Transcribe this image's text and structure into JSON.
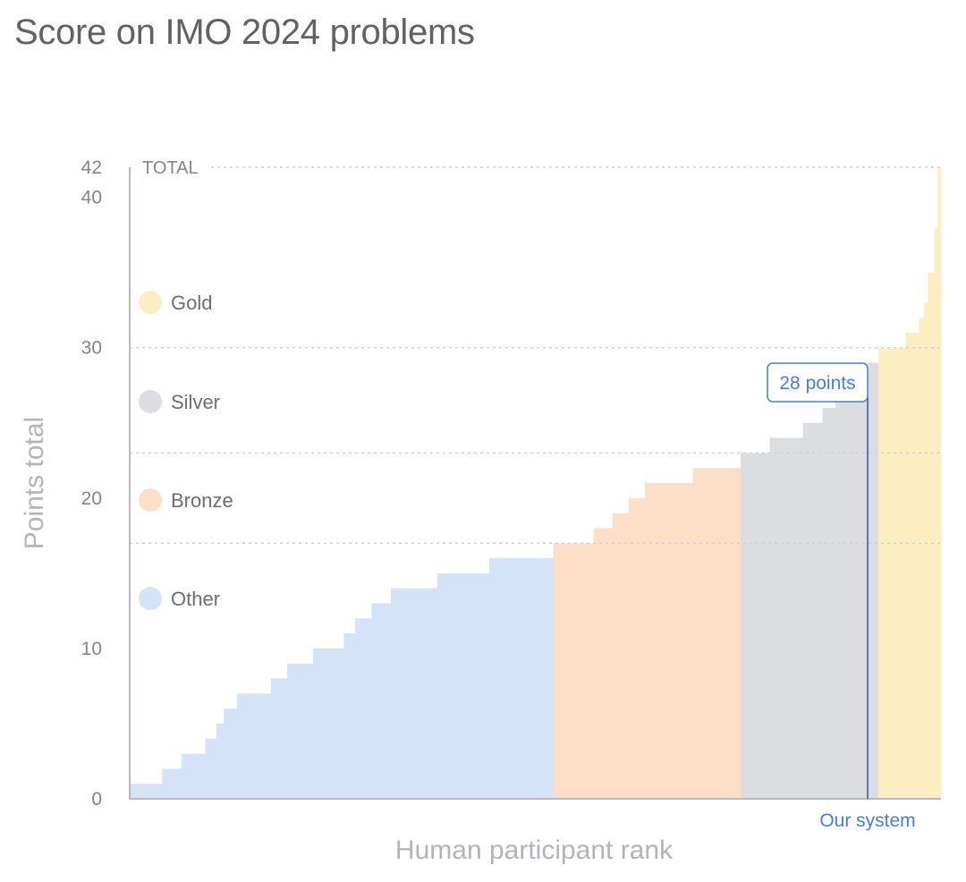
{
  "title": "Score on IMO 2024 problems",
  "chart_data": {
    "type": "area",
    "title": "Score on IMO 2024 problems",
    "xlabel": "Human participant rank",
    "ylabel": "Points total",
    "ylim": [
      0,
      42
    ],
    "yticks": [
      0,
      10,
      20,
      30,
      40,
      42
    ],
    "total_label": "TOTAL",
    "total_value": 42,
    "medal_thresholds": {
      "bronze": 17,
      "silver": 23,
      "gold": 30
    },
    "legend": [
      {
        "label": "Gold",
        "color": "#fdeec2"
      },
      {
        "label": "Silver",
        "color": "#dcdde0"
      },
      {
        "label": "Bronze",
        "color": "#fcdfc6"
      },
      {
        "label": "Other",
        "color": "#d5e3f9"
      }
    ],
    "series": [
      {
        "category": "Other",
        "color": "#d5e3f9",
        "steps": [
          {
            "x0": 0,
            "x1": 4.0,
            "y": 1
          },
          {
            "x0": 4.0,
            "x1": 6.4,
            "y": 2
          },
          {
            "x0": 6.4,
            "x1": 9.3,
            "y": 3
          },
          {
            "x0": 9.3,
            "x1": 10.7,
            "y": 4
          },
          {
            "x0": 10.7,
            "x1": 11.6,
            "y": 5
          },
          {
            "x0": 11.6,
            "x1": 13.2,
            "y": 6
          },
          {
            "x0": 13.2,
            "x1": 17.4,
            "y": 7
          },
          {
            "x0": 17.4,
            "x1": 19.4,
            "y": 8
          },
          {
            "x0": 19.4,
            "x1": 22.6,
            "y": 9
          },
          {
            "x0": 22.6,
            "x1": 26.4,
            "y": 10
          },
          {
            "x0": 26.4,
            "x1": 27.8,
            "y": 11
          },
          {
            "x0": 27.8,
            "x1": 29.8,
            "y": 12
          },
          {
            "x0": 29.8,
            "x1": 32.2,
            "y": 13
          },
          {
            "x0": 32.2,
            "x1": 37.9,
            "y": 14
          },
          {
            "x0": 37.9,
            "x1": 44.3,
            "y": 15
          },
          {
            "x0": 44.3,
            "x1": 52.2,
            "y": 16
          }
        ]
      },
      {
        "category": "Bronze",
        "color": "#fcdfc6",
        "steps": [
          {
            "x0": 52.2,
            "x1": 57.2,
            "y": 17
          },
          {
            "x0": 57.2,
            "x1": 59.5,
            "y": 18
          },
          {
            "x0": 59.5,
            "x1": 61.5,
            "y": 19
          },
          {
            "x0": 61.5,
            "x1": 63.5,
            "y": 20
          },
          {
            "x0": 63.5,
            "x1": 69.4,
            "y": 21
          },
          {
            "x0": 69.4,
            "x1": 75.3,
            "y": 22
          }
        ]
      },
      {
        "category": "Silver",
        "color": "#dcdde0",
        "steps": [
          {
            "x0": 75.3,
            "x1": 78.9,
            "y": 23
          },
          {
            "x0": 78.9,
            "x1": 83.0,
            "y": 24
          },
          {
            "x0": 83.0,
            "x1": 85.4,
            "y": 25
          },
          {
            "x0": 85.4,
            "x1": 87.0,
            "y": 26
          },
          {
            "x0": 87.0,
            "x1": 89.5,
            "y": 27
          },
          {
            "x0": 89.5,
            "x1": 92.3,
            "y": 29
          }
        ]
      },
      {
        "category": "Gold",
        "color": "#fdeec2",
        "steps": [
          {
            "x0": 92.3,
            "x1": 95.7,
            "y": 30
          },
          {
            "x0": 95.7,
            "x1": 97.3,
            "y": 31
          },
          {
            "x0": 97.3,
            "x1": 97.9,
            "y": 32
          },
          {
            "x0": 97.9,
            "x1": 98.4,
            "y": 33
          },
          {
            "x0": 98.4,
            "x1": 99.2,
            "y": 35
          },
          {
            "x0": 99.2,
            "x1": 99.6,
            "y": 38
          },
          {
            "x0": 99.6,
            "x1": 100,
            "y": 42
          }
        ]
      }
    ],
    "our_system": {
      "label": "Our system",
      "score": 28,
      "annotation": "28 points"
    }
  },
  "colors": {
    "axis": "#b6babe",
    "gridline": "#cfd2d6",
    "highlight": "#4a7fd0"
  }
}
